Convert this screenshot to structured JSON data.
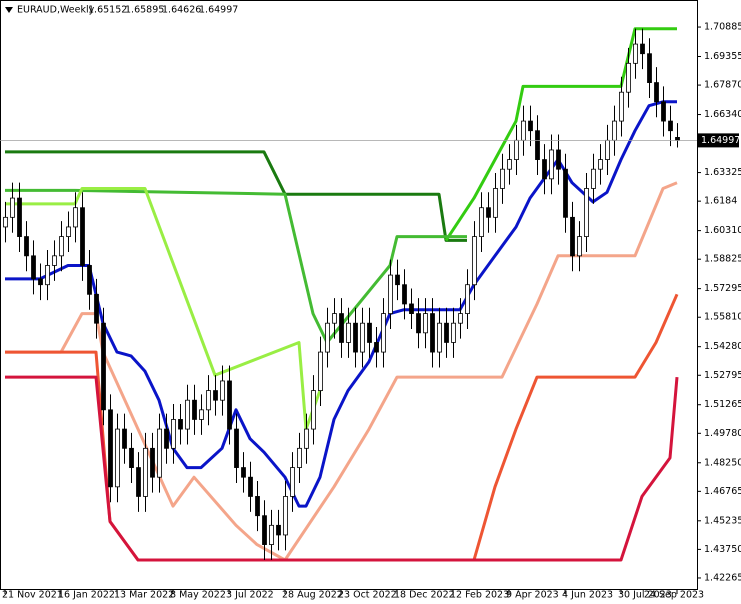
{
  "chart_data": {
    "type": "candlestick",
    "title": "EURAUD,Weekly",
    "ylim": [
      1.4164,
      1.7229
    ],
    "yticks": [
      1.70885,
      1.69355,
      {
        "value": 1.6787,
        "label": "1.67870"
      },
      {
        "value": 1.6634,
        "label": "1.66340"
      },
      1.63325,
      1.6184,
      {
        "value": 1.6031,
        "label": "1.60310"
      },
      1.58825,
      1.57295,
      {
        "value": 1.5581,
        "label": "1.55810"
      },
      {
        "value": 1.5428,
        "label": "1.54280"
      },
      1.52795,
      1.51265,
      {
        "value": 1.4978,
        "label": "1.49780"
      },
      {
        "value": 1.4825,
        "label": "1.48250"
      },
      1.46765,
      1.45235,
      {
        "value": 1.4375,
        "label": "1.43750"
      },
      1.42265
    ],
    "xlim": [
      0,
      96
    ],
    "xticks": [
      {
        "value": 0,
        "label": "21 Nov 2021"
      },
      {
        "value": 8,
        "label": "16 Jan 2022"
      },
      {
        "value": 16,
        "label": "13 Mar 2022"
      },
      {
        "value": 24,
        "label": "8 May 2022"
      },
      {
        "value": 32,
        "label": "3 Jul 2022"
      },
      {
        "value": 40,
        "label": "28 Aug 2022"
      },
      {
        "value": 48,
        "label": "23 Oct 2022"
      },
      {
        "value": 56,
        "label": "18 Dec 2022"
      },
      {
        "value": 64,
        "label": "12 Feb 2023"
      },
      {
        "value": 72,
        "label": "9 Apr 2023"
      },
      {
        "value": 80,
        "label": "4 Jun 2023"
      },
      {
        "value": 88,
        "label": "30 Jul 2023"
      },
      {
        "value": 96,
        "label": "24 Sep 2023"
      }
    ],
    "candles": [
      [
        1.605,
        1.618,
        1.597,
        1.61
      ],
      [
        1.61,
        1.628,
        1.602,
        1.62
      ],
      [
        1.62,
        1.628,
        1.592,
        1.6
      ],
      [
        1.6,
        1.608,
        1.582,
        1.59
      ],
      [
        1.59,
        1.598,
        1.57,
        1.578
      ],
      [
        1.578,
        1.586,
        1.567,
        1.575
      ],
      [
        1.575,
        1.593,
        1.567,
        1.585
      ],
      [
        1.585,
        1.598,
        1.577,
        1.59
      ],
      [
        1.59,
        1.608,
        1.582,
        1.6
      ],
      [
        1.6,
        1.613,
        1.592,
        1.605
      ],
      [
        1.605,
        1.623,
        1.597,
        1.615
      ],
      [
        1.615,
        1.623,
        1.577,
        1.585
      ],
      [
        1.585,
        1.593,
        1.562,
        1.57
      ],
      [
        1.57,
        1.578,
        1.547,
        1.555
      ],
      [
        1.555,
        1.563,
        1.502,
        1.51
      ],
      [
        1.51,
        1.518,
        1.462,
        1.47
      ],
      [
        1.47,
        1.508,
        1.462,
        1.5
      ],
      [
        1.5,
        1.508,
        1.482,
        1.49
      ],
      [
        1.49,
        1.498,
        1.472,
        1.48
      ],
      [
        1.48,
        1.488,
        1.457,
        1.465
      ],
      [
        1.465,
        1.498,
        1.457,
        1.49
      ],
      [
        1.49,
        1.498,
        1.467,
        1.475
      ],
      [
        1.475,
        1.508,
        1.467,
        1.5
      ],
      [
        1.5,
        1.508,
        1.482,
        1.49
      ],
      [
        1.49,
        1.513,
        1.482,
        1.505
      ],
      [
        1.505,
        1.513,
        1.492,
        1.5
      ],
      [
        1.5,
        1.523,
        1.492,
        1.515
      ],
      [
        1.515,
        1.523,
        1.497,
        1.505
      ],
      [
        1.505,
        1.518,
        1.497,
        1.51
      ],
      [
        1.51,
        1.528,
        1.502,
        1.52
      ],
      [
        1.52,
        1.528,
        1.507,
        1.515
      ],
      [
        1.515,
        1.533,
        1.507,
        1.525
      ],
      [
        1.525,
        1.533,
        1.492,
        1.5
      ],
      [
        1.5,
        1.508,
        1.472,
        1.48
      ],
      [
        1.48,
        1.488,
        1.467,
        1.475
      ],
      [
        1.475,
        1.483,
        1.457,
        1.465
      ],
      [
        1.465,
        1.473,
        1.447,
        1.455
      ],
      [
        1.455,
        1.463,
        1.432,
        1.44
      ],
      [
        1.44,
        1.458,
        1.432,
        1.45
      ],
      [
        1.45,
        1.458,
        1.437,
        1.445
      ],
      [
        1.445,
        1.473,
        1.437,
        1.465
      ],
      [
        1.465,
        1.488,
        1.457,
        1.48
      ],
      [
        1.48,
        1.498,
        1.472,
        1.49
      ],
      [
        1.49,
        1.508,
        1.482,
        1.5
      ],
      [
        1.5,
        1.528,
        1.492,
        1.52
      ],
      [
        1.52,
        1.548,
        1.512,
        1.54
      ],
      [
        1.54,
        1.563,
        1.532,
        1.555
      ],
      [
        1.555,
        1.568,
        1.547,
        1.56
      ],
      [
        1.56,
        1.568,
        1.537,
        1.545
      ],
      [
        1.545,
        1.563,
        1.537,
        1.555
      ],
      [
        1.555,
        1.563,
        1.532,
        1.54
      ],
      [
        1.54,
        1.563,
        1.532,
        1.555
      ],
      [
        1.555,
        1.563,
        1.537,
        1.545
      ],
      [
        1.545,
        1.553,
        1.532,
        1.54
      ],
      [
        1.54,
        1.568,
        1.532,
        1.56
      ],
      [
        1.56,
        1.588,
        1.552,
        1.58
      ],
      [
        1.58,
        1.588,
        1.567,
        1.575
      ],
      [
        1.575,
        1.583,
        1.557,
        1.565
      ],
      [
        1.565,
        1.573,
        1.552,
        1.56
      ],
      [
        1.56,
        1.568,
        1.542,
        1.55
      ],
      [
        1.55,
        1.568,
        1.542,
        1.56
      ],
      [
        1.56,
        1.568,
        1.532,
        1.54
      ],
      [
        1.54,
        1.563,
        1.532,
        1.555
      ],
      [
        1.555,
        1.563,
        1.537,
        1.545
      ],
      [
        1.545,
        1.563,
        1.537,
        1.555
      ],
      [
        1.555,
        1.568,
        1.547,
        1.56
      ],
      [
        1.56,
        1.583,
        1.552,
        1.575
      ],
      [
        1.575,
        1.608,
        1.567,
        1.6
      ],
      [
        1.6,
        1.623,
        1.592,
        1.615
      ],
      [
        1.615,
        1.623,
        1.602,
        1.61
      ],
      [
        1.61,
        1.633,
        1.602,
        1.625
      ],
      [
        1.625,
        1.643,
        1.617,
        1.635
      ],
      [
        1.635,
        1.648,
        1.627,
        1.64
      ],
      [
        1.64,
        1.658,
        1.632,
        1.65
      ],
      [
        1.65,
        1.668,
        1.642,
        1.66
      ],
      [
        1.66,
        1.668,
        1.647,
        1.655
      ],
      [
        1.655,
        1.663,
        1.632,
        1.64
      ],
      [
        1.64,
        1.648,
        1.622,
        1.63
      ],
      [
        1.63,
        1.653,
        1.622,
        1.645
      ],
      [
        1.645,
        1.653,
        1.627,
        1.635
      ],
      [
        1.635,
        1.643,
        1.602,
        1.61
      ],
      [
        1.61,
        1.618,
        1.582,
        1.59
      ],
      [
        1.59,
        1.608,
        1.582,
        1.6
      ],
      [
        1.6,
        1.633,
        1.592,
        1.625
      ],
      [
        1.625,
        1.643,
        1.617,
        1.635
      ],
      [
        1.635,
        1.648,
        1.627,
        1.64
      ],
      [
        1.64,
        1.658,
        1.632,
        1.65
      ],
      [
        1.65,
        1.668,
        1.642,
        1.66
      ],
      [
        1.66,
        1.683,
        1.652,
        1.675
      ],
      [
        1.675,
        1.698,
        1.667,
        1.69
      ],
      [
        1.69,
        1.708,
        1.682,
        1.7
      ],
      [
        1.7,
        1.708,
        1.687,
        1.695
      ],
      [
        1.695,
        1.703,
        1.672,
        1.68
      ],
      [
        1.68,
        1.688,
        1.662,
        1.67
      ],
      [
        1.67,
        1.678,
        1.652,
        1.66
      ],
      [
        1.66,
        1.668,
        1.647,
        1.655
      ],
      [
        1.65152,
        1.65895,
        1.64626,
        1.64997
      ]
    ],
    "series": [
      {
        "color": "#1a7a10",
        "x": [
          0,
          37,
          40,
          62,
          63,
          66
        ],
        "values": [
          1.644,
          1.644,
          1.622,
          1.622,
          1.598,
          1.598
        ]
      },
      {
        "color": "#33cc11",
        "x": [
          63,
          67,
          70,
          73,
          74,
          88,
          90,
          96
        ],
        "values": [
          1.598,
          1.62,
          1.64,
          1.66,
          1.678,
          1.678,
          1.708,
          1.708
        ]
      },
      {
        "color": "#44bb33",
        "x": [
          0,
          10,
          40,
          44,
          46,
          55,
          56,
          66
        ],
        "values": [
          1.624,
          1.624,
          1.622,
          1.56,
          1.545,
          1.585,
          1.6,
          1.6
        ]
      },
      {
        "color": "#99ee44",
        "x": [
          0,
          10,
          11,
          20,
          30,
          42,
          43,
          45
        ],
        "values": [
          1.617,
          1.617,
          1.625,
          1.625,
          1.528,
          1.545,
          1.5,
          1.52
        ]
      },
      {
        "color": "#0a14c8",
        "x": [
          0,
          5,
          9,
          12,
          14,
          16,
          18,
          20,
          22,
          24,
          26,
          28,
          31,
          33,
          35,
          37,
          40,
          42,
          43,
          45,
          47,
          49,
          52,
          55,
          57,
          65,
          67,
          70,
          73,
          75,
          77,
          79,
          81,
          84,
          86,
          88,
          90,
          92,
          94,
          96
        ],
        "values": [
          1.578,
          1.578,
          1.585,
          1.585,
          1.555,
          1.54,
          1.538,
          1.53,
          1.515,
          1.49,
          1.48,
          1.48,
          1.49,
          1.51,
          1.495,
          1.488,
          1.475,
          1.46,
          1.46,
          1.475,
          1.505,
          1.52,
          1.535,
          1.56,
          1.562,
          1.562,
          1.575,
          1.59,
          1.605,
          1.62,
          1.63,
          1.64,
          1.628,
          1.618,
          1.623,
          1.64,
          1.655,
          1.668,
          1.67,
          1.67
        ]
      },
      {
        "color": "#f4a58a",
        "x": [
          0,
          8,
          11,
          13,
          14,
          24,
          27,
          33,
          36,
          40,
          47,
          52,
          56,
          71,
          76,
          79,
          90,
          94,
          96
        ],
        "values": [
          1.54,
          1.54,
          1.56,
          1.56,
          1.54,
          1.46,
          1.475,
          1.45,
          1.44,
          1.432,
          1.47,
          1.5,
          1.527,
          1.527,
          1.565,
          1.59,
          1.59,
          1.625,
          1.628
        ]
      },
      {
        "color": "#ee5533",
        "x": [
          0,
          13,
          15,
          19,
          67,
          70,
          73,
          76,
          90,
          93,
          96
        ],
        "values": [
          1.54,
          1.54,
          1.452,
          1.432,
          1.432,
          1.47,
          1.5,
          1.527,
          1.527,
          1.545,
          1.57
        ]
      },
      {
        "color": "#d4143c",
        "x": [
          0,
          13,
          15,
          19,
          88,
          91,
          92,
          95,
          96
        ],
        "values": [
          1.527,
          1.527,
          1.452,
          1.432,
          1.432,
          1.465,
          1.47,
          1.485,
          1.527
        ]
      }
    ]
  }
}
